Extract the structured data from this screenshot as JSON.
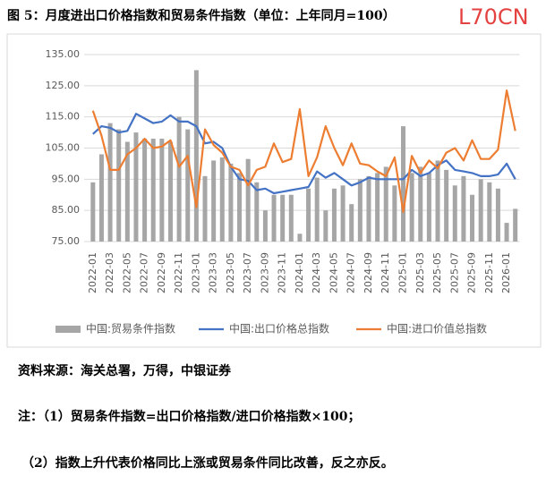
{
  "header": {
    "title": "图 5：月度进出口价格指数和贸易条件指数（单位：上年同月=100）",
    "watermark": "L70CN"
  },
  "chart_data": {
    "type": "bar-line",
    "categories": [
      "2022-01",
      null,
      "2022-03",
      null,
      "2022-05",
      null,
      "2022-07",
      null,
      "2022-09",
      null,
      "2022-11",
      null,
      "2023-01",
      null,
      "2023-03",
      null,
      "2023-05",
      null,
      "2023-07",
      null,
      "2023-09",
      null,
      "2023-11",
      null,
      "2024-01",
      null,
      "2024-03",
      null,
      "2024-05",
      null,
      "2024-07",
      null,
      "2024-09",
      null,
      "2024-11",
      null,
      "2025-01",
      null,
      "2025-03",
      null,
      "2025-05",
      null,
      "2025-07",
      null,
      "2025-09",
      null,
      "2025-11",
      null,
      "2026-01",
      null
    ],
    "series": [
      {
        "name": "中国:贸易条件指数",
        "kind": "bar",
        "color": "#a6a6a6",
        "values": [
          94,
          103,
          113,
          111,
          107,
          110,
          108,
          108,
          108,
          107,
          115,
          111,
          130,
          96,
          101,
          102,
          100,
          97,
          101.5,
          94,
          85,
          90,
          90,
          90,
          77.5,
          92,
          95.5,
          85,
          92,
          93,
          87,
          95,
          96,
          97,
          99,
          93,
          112,
          97,
          99,
          97,
          101,
          98,
          93,
          96,
          90,
          95,
          94,
          92,
          81,
          85.5
        ]
      },
      {
        "name": "中国:出口价格总指数",
        "kind": "line",
        "color": "#4472c4",
        "values": [
          109.5,
          112,
          111.5,
          110,
          110.5,
          116,
          114.5,
          113,
          113.5,
          115.5,
          113.5,
          113.5,
          112,
          106.5,
          107,
          105,
          99,
          95,
          94.5,
          91.5,
          92,
          90.5,
          91,
          91.5,
          92,
          92.5,
          97.5,
          95.5,
          97,
          95,
          93,
          94,
          95.5,
          95,
          95,
          95,
          95,
          98,
          96,
          97,
          99.5,
          101,
          98,
          97.5,
          97,
          96,
          96,
          96.5,
          100,
          95
        ]
      },
      {
        "name": "中国:进口价值总指数",
        "kind": "line",
        "color": "#ed7d31",
        "values": [
          117,
          109,
          98,
          98,
          103,
          105,
          108,
          105,
          105.5,
          107.5,
          99,
          102.5,
          86,
          111,
          106,
          103.5,
          99,
          98,
          93,
          98,
          99,
          106.5,
          100.5,
          101.5,
          117.5,
          96,
          102,
          112,
          105,
          99.5,
          106.5,
          100,
          99.5,
          97.5,
          96,
          102,
          84.5,
          102.5,
          97,
          101,
          98.5,
          103.5,
          105,
          101,
          107.5,
          101.5,
          101.5,
          104.5,
          123.5,
          110.5
        ]
      }
    ],
    "ylim": [
      75,
      135
    ],
    "yticks": [
      {
        "value": 75,
        "label": "75.00"
      },
      {
        "value": 85,
        "label": "85.00"
      },
      {
        "value": 95,
        "label": "95.00"
      },
      {
        "value": 105,
        "label": "105.00"
      },
      {
        "value": 115,
        "label": "115.00"
      },
      {
        "value": 125,
        "label": "125.00"
      },
      {
        "value": 135,
        "label": "135.00"
      }
    ],
    "grid": true,
    "legend": "bottom"
  },
  "notes": {
    "source": "资料来源：海关总署，万得，中银证券",
    "note1": "注：（1）贸易条件指数=出口价格指数/进口价格指数×100；",
    "note2": "（2）指数上升代表价格同比上涨或贸易条件同比改善，反之亦反。"
  }
}
